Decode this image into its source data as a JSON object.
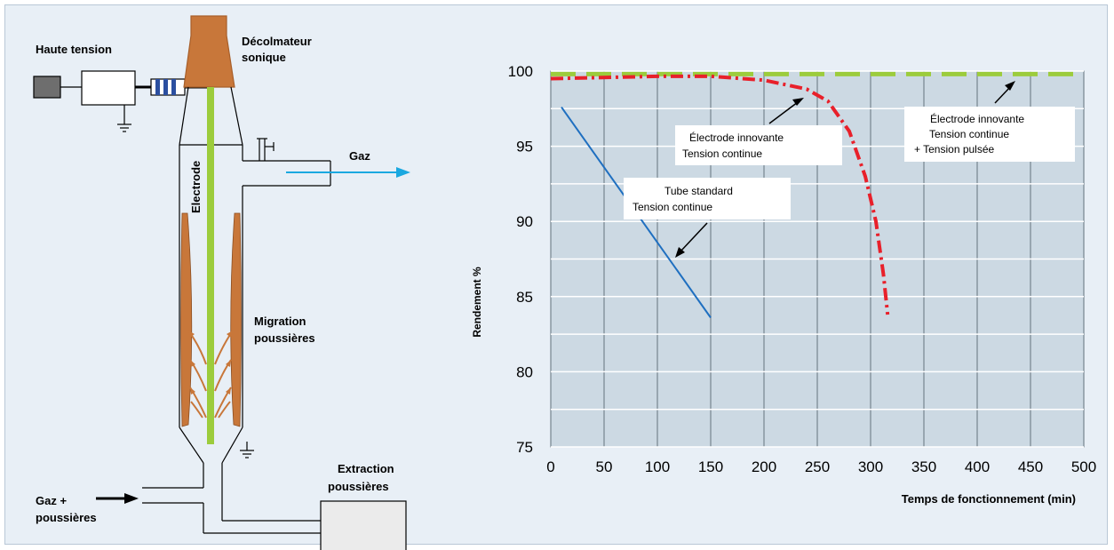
{
  "diagram": {
    "haute_tension": "Haute tension",
    "decolmateur_line1": "Décolmateur",
    "decolmateur_line2": "sonique",
    "electrode": "Electrode",
    "gaz": "Gaz",
    "migration_line1": "Migration",
    "migration_line2": "poussières",
    "extraction_line1": "Extraction",
    "extraction_line2": "poussières",
    "entree_line1": "Gaz +",
    "entree_line2": "poussières"
  },
  "colors": {
    "background": "#e8eff6",
    "plot_background": "#ccd9e3",
    "tube_standard": "#1f6fc0",
    "electrode_continue": "#e8202a",
    "electrode_pulsee": "#9ccc3c",
    "dust": "#c8773a",
    "electrode_rod": "#9ccc3c",
    "gas_arrow": "#1aa8e0"
  },
  "chart_data": {
    "type": "line",
    "title": "",
    "xlabel": "Temps de fonctionnement (min)",
    "ylabel": "Rendement %",
    "xlim": [
      0,
      500
    ],
    "ylim": [
      75,
      100
    ],
    "xticks": [
      0,
      50,
      100,
      150,
      200,
      250,
      300,
      350,
      400,
      450,
      500
    ],
    "yticks": [
      75,
      80,
      85,
      90,
      95,
      100
    ],
    "grid": true,
    "series": [
      {
        "name": "Tube standard Tension continue",
        "style": "solid",
        "x": [
          10,
          150
        ],
        "y": [
          97.6,
          83.6
        ]
      },
      {
        "name": "Électrode innovante Tension continue",
        "style": "dashdot",
        "x": [
          0,
          100,
          150,
          200,
          240,
          260,
          280,
          295,
          305,
          312,
          316
        ],
        "y": [
          99.5,
          99.65,
          99.65,
          99.4,
          98.8,
          98.0,
          96.0,
          93.0,
          90.0,
          86.5,
          83.8
        ]
      },
      {
        "name": "Électrode innovante Tension continue + Tension pulsée",
        "style": "dashed",
        "x": [
          0,
          500
        ],
        "y": [
          99.8,
          99.8
        ]
      }
    ],
    "annotations": [
      {
        "line1": "Tube standard",
        "line2": "Tension continue"
      },
      {
        "line1": "Électrode innovante",
        "line2": "Tension continue"
      },
      {
        "line1": "Électrode  innovante",
        "line2": "Tension continue",
        "line3": "+ Tension pulsée"
      }
    ]
  }
}
